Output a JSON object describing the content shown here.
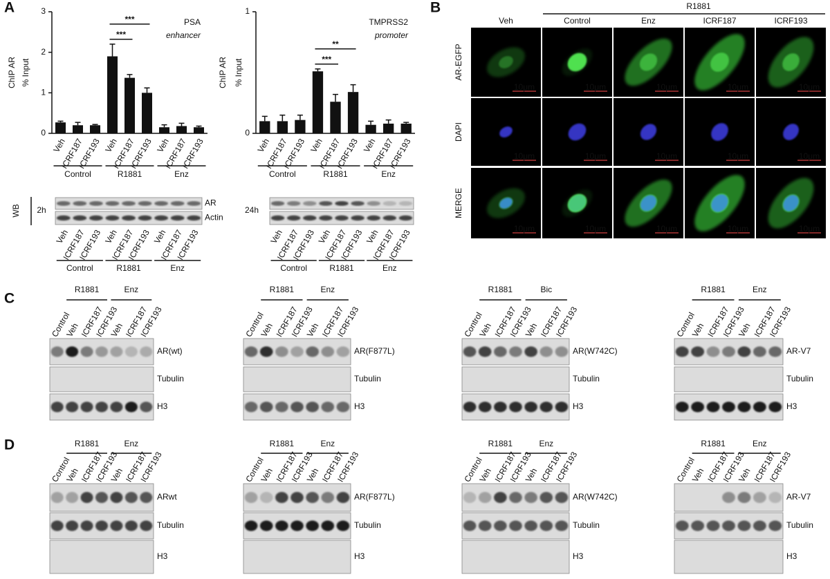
{
  "panel_labels": {
    "a": "A",
    "b": "B",
    "c": "C",
    "d": "D"
  },
  "chart_data": [
    {
      "type": "bar",
      "title": "PSA",
      "subtitle": "enhancer",
      "ylabel": "ChIP AR",
      "ylabel_unit": "% Input",
      "categories": [
        "Veh",
        "ICRF187",
        "ICRF193",
        "Veh",
        "ICRF187",
        "ICRF193",
        "Veh",
        "ICRF187",
        "ICRF193"
      ],
      "groups": [
        "Control",
        "R1881",
        "Enz"
      ],
      "values": [
        0.27,
        0.2,
        0.2,
        1.9,
        1.37,
        1.0,
        0.15,
        0.18,
        0.15
      ],
      "errors": [
        0.03,
        0.07,
        0.02,
        0.3,
        0.08,
        0.12,
        0.06,
        0.07,
        0.03
      ],
      "color": "#111111",
      "ylim": [
        0,
        3
      ],
      "yticks": [
        0,
        1,
        2,
        3
      ],
      "significance": [
        {
          "label": "***",
          "between": [
            3,
            5
          ]
        },
        {
          "label": "***",
          "between": [
            3,
            4
          ]
        }
      ]
    },
    {
      "type": "bar",
      "title": "TMPRSS2",
      "subtitle": "promoter",
      "ylabel": "ChIP AR",
      "ylabel_unit": "% Input",
      "categories": [
        "Veh",
        "ICRF187",
        "ICRF193",
        "Veh",
        "ICRF187",
        "ICRF193",
        "Veh",
        "ICRF187",
        "ICRF193"
      ],
      "groups": [
        "Control",
        "R1881",
        "Enz"
      ],
      "values": [
        0.1,
        0.1,
        0.11,
        0.51,
        0.26,
        0.34,
        0.07,
        0.08,
        0.08
      ],
      "errors": [
        0.04,
        0.05,
        0.04,
        0.02,
        0.06,
        0.06,
        0.03,
        0.03,
        0.01
      ],
      "color": "#111111",
      "ylim": [
        0,
        1
      ],
      "yticks": [
        0,
        1
      ],
      "significance": [
        {
          "label": "**",
          "between": [
            3,
            5
          ]
        },
        {
          "label": "***",
          "between": [
            3,
            4
          ]
        }
      ]
    }
  ],
  "panel_a_blots": {
    "method": "WB",
    "blots": [
      {
        "time": "2h",
        "bands": [
          "AR",
          "Actin"
        ],
        "lanes": [
          "Veh",
          "ICRF187",
          "ICRF193",
          "Veh",
          "ICRF187",
          "ICRF193",
          "Veh",
          "ICRF187",
          "ICRF193"
        ],
        "groups": [
          "Control",
          "R1881",
          "Enz"
        ]
      },
      {
        "time": "24h",
        "lanes": [
          "Veh",
          "ICRF187",
          "ICRF193",
          "Veh",
          "ICRF187",
          "ICRF193",
          "Veh",
          "ICRF187",
          "ICRF193"
        ],
        "groups": [
          "Control",
          "R1881",
          "Enz"
        ]
      }
    ]
  },
  "panel_b": {
    "treatment": "R1881",
    "columns": [
      "Veh",
      "Control",
      "Enz",
      "ICRF187",
      "ICRF193"
    ],
    "rows": [
      "AR-EGFP",
      "DAPI",
      "MERGE"
    ],
    "scale_bar": "10μm"
  },
  "panel_c": {
    "blots": [
      {
        "lanes": [
          "Control",
          "Veh",
          "ICRF187",
          "ICRF193",
          "Veh",
          "ICRF187",
          "ICRF193"
        ],
        "groups": [
          "R1881",
          "Enz"
        ],
        "bands": [
          "AR(wt)",
          "Tubulin",
          "H3"
        ]
      },
      {
        "lanes": [
          "Control",
          "Veh",
          "ICRF187",
          "ICRF193",
          "Veh",
          "ICRF187",
          "ICRF193"
        ],
        "groups": [
          "R1881",
          "Enz"
        ],
        "bands": [
          "AR(F877L)",
          "Tubulin",
          "H3"
        ]
      },
      {
        "lanes": [
          "Control",
          "Veh",
          "ICRF187",
          "ICRF193",
          "Veh",
          "ICRF187",
          "ICRF193"
        ],
        "groups": [
          "R1881",
          "Bic"
        ],
        "bands": [
          "AR(W742C)",
          "Tubulin",
          "H3"
        ]
      },
      {
        "lanes": [
          "Control",
          "Veh",
          "ICRF187",
          "ICRF193",
          "Veh",
          "ICRF187",
          "ICRF193"
        ],
        "groups": [
          "R1881",
          "Enz"
        ],
        "bands": [
          "AR-V7",
          "Tubulin",
          "H3"
        ]
      }
    ]
  },
  "panel_d": {
    "blots": [
      {
        "lanes": [
          "Control",
          "Veh",
          "ICRF187",
          "ICRF193",
          "Veh",
          "ICRF187",
          "ICRF193"
        ],
        "groups": [
          "R1881",
          "Enz"
        ],
        "bands": [
          "ARwt",
          "Tubulin",
          "H3"
        ]
      },
      {
        "lanes": [
          "Control",
          "Veh",
          "ICRF187",
          "ICRF193",
          "Veh",
          "ICRF187",
          "ICRF193"
        ],
        "groups": [
          "R1881",
          "Enz"
        ],
        "bands": [
          "AR(F877L)",
          "Tubulin",
          "H3"
        ]
      },
      {
        "lanes": [
          "Control",
          "Veh",
          "ICRF187",
          "ICRF193",
          "Veh",
          "ICRF187",
          "ICRF193"
        ],
        "groups": [
          "R1881",
          "Enz"
        ],
        "bands": [
          "AR(W742C)",
          "Tubulin",
          "H3"
        ]
      },
      {
        "lanes": [
          "Control",
          "Veh",
          "ICRF187",
          "ICRF193",
          "Veh",
          "ICRF187",
          "ICRF193"
        ],
        "groups": [
          "R1881",
          "Enz"
        ],
        "bands": [
          "AR-V7",
          "Tubulin",
          "H3"
        ]
      }
    ]
  }
}
